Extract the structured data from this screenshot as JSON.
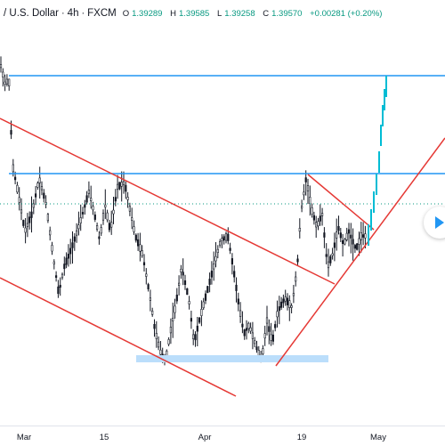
{
  "header": {
    "symbol_title": "/ U.S. Dollar",
    "interval": "4h",
    "exchange": "FXCM",
    "open_label": "O",
    "open": "1.39289",
    "high_label": "H",
    "high": "1.39585",
    "low_label": "L",
    "low": "1.39258",
    "close_label": "C",
    "close": "1.39570",
    "change": "+0.00281 (+0.20%)"
  },
  "colors": {
    "candles": "#131722",
    "trendline": "#e53935",
    "horizontal_level": "#2196f3",
    "support_zone": "#bbdefb",
    "last_candles": "#00bcd4",
    "price_line": "#089981"
  },
  "x_axis": {
    "labels": [
      "Mar",
      "15",
      "Apr",
      "19",
      "May"
    ]
  },
  "play_icon": "play-arrow-icon"
}
